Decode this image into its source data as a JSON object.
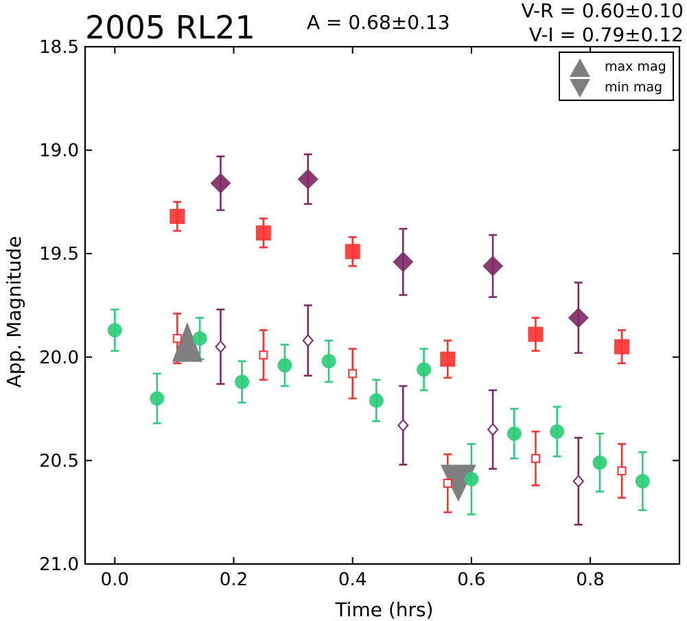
{
  "chart_data": {
    "type": "scatter",
    "title": "2005 RL21",
    "amplitude_text": "A  = 0.68±0.13",
    "color_text_1": "V-R = 0.60±0.10",
    "color_text_2": "V-I  = 0.79±0.12",
    "xlabel": "Time (hrs)",
    "ylabel": "App. Magnitude",
    "xlim": [
      -0.05,
      0.95
    ],
    "ylim": [
      21.0,
      18.5
    ],
    "y_inverted": true,
    "x_ticks": [
      "0.0",
      "0.2",
      "0.4",
      "0.6",
      "0.8"
    ],
    "y_ticks": [
      "18.5",
      "19.0",
      "19.5",
      "20.0",
      "20.5",
      "21.0"
    ],
    "grid": false,
    "legend_position": "top-right",
    "legend": [
      {
        "label": "max mag",
        "marker": "triangle-up"
      },
      {
        "label": "min mag",
        "marker": "triangle-down"
      }
    ],
    "series": [
      {
        "marker": "circle",
        "color": "#2ecc7a",
        "points": [
          {
            "x": 0.0,
            "y": 19.87,
            "err": 0.1
          },
          {
            "x": 0.071,
            "y": 20.2,
            "err": 0.12
          },
          {
            "x": 0.143,
            "y": 19.91,
            "err": 0.1
          },
          {
            "x": 0.214,
            "y": 20.12,
            "err": 0.1
          },
          {
            "x": 0.286,
            "y": 20.04,
            "err": 0.1
          },
          {
            "x": 0.36,
            "y": 20.02,
            "err": 0.1
          },
          {
            "x": 0.44,
            "y": 20.21,
            "err": 0.1
          },
          {
            "x": 0.52,
            "y": 20.06,
            "err": 0.1
          },
          {
            "x": 0.6,
            "y": 20.59,
            "err": 0.17
          },
          {
            "x": 0.672,
            "y": 20.37,
            "err": 0.12
          },
          {
            "x": 0.744,
            "y": 20.36,
            "err": 0.12
          },
          {
            "x": 0.816,
            "y": 20.51,
            "err": 0.14
          },
          {
            "x": 0.888,
            "y": 20.6,
            "err": 0.14
          }
        ]
      },
      {
        "marker": "square",
        "color": "#ff3333",
        "points": [
          {
            "x": 0.105,
            "y": 19.32,
            "err": 0.07
          },
          {
            "x": 0.25,
            "y": 19.4,
            "err": 0.07
          },
          {
            "x": 0.4,
            "y": 19.49,
            "err": 0.07
          },
          {
            "x": 0.56,
            "y": 20.01,
            "err": 0.09
          },
          {
            "x": 0.708,
            "y": 19.89,
            "err": 0.08
          },
          {
            "x": 0.853,
            "y": 19.95,
            "err": 0.08
          }
        ]
      },
      {
        "marker": "diamond",
        "color": "#7f2a66",
        "points": [
          {
            "x": 0.178,
            "y": 19.16,
            "err": 0.13
          },
          {
            "x": 0.325,
            "y": 19.14,
            "err": 0.12
          },
          {
            "x": 0.485,
            "y": 19.54,
            "err": 0.16
          },
          {
            "x": 0.636,
            "y": 19.56,
            "err": 0.15
          },
          {
            "x": 0.78,
            "y": 19.81,
            "err": 0.17
          }
        ]
      },
      {
        "marker": "square-open",
        "color": "#ff3333",
        "points": [
          {
            "x": 0.105,
            "y": 19.91,
            "err": 0.12
          },
          {
            "x": 0.25,
            "y": 19.99,
            "err": 0.12
          },
          {
            "x": 0.4,
            "y": 20.08,
            "err": 0.12
          },
          {
            "x": 0.56,
            "y": 20.61,
            "err": 0.14
          },
          {
            "x": 0.708,
            "y": 20.49,
            "err": 0.13
          },
          {
            "x": 0.853,
            "y": 20.55,
            "err": 0.13
          }
        ]
      },
      {
        "marker": "diamond-open",
        "color": "#7f2a66",
        "points": [
          {
            "x": 0.178,
            "y": 19.95,
            "err": 0.18
          },
          {
            "x": 0.325,
            "y": 19.92,
            "err": 0.17
          },
          {
            "x": 0.485,
            "y": 20.33,
            "err": 0.19
          },
          {
            "x": 0.636,
            "y": 20.35,
            "err": 0.19
          },
          {
            "x": 0.78,
            "y": 20.6,
            "err": 0.21
          }
        ]
      }
    ],
    "max_mag_marker": {
      "x": 0.122,
      "y": 19.93,
      "color": "#7f7f7f"
    },
    "min_mag_marker": {
      "x": 0.578,
      "y": 20.6,
      "color": "#7f7f7f"
    }
  }
}
